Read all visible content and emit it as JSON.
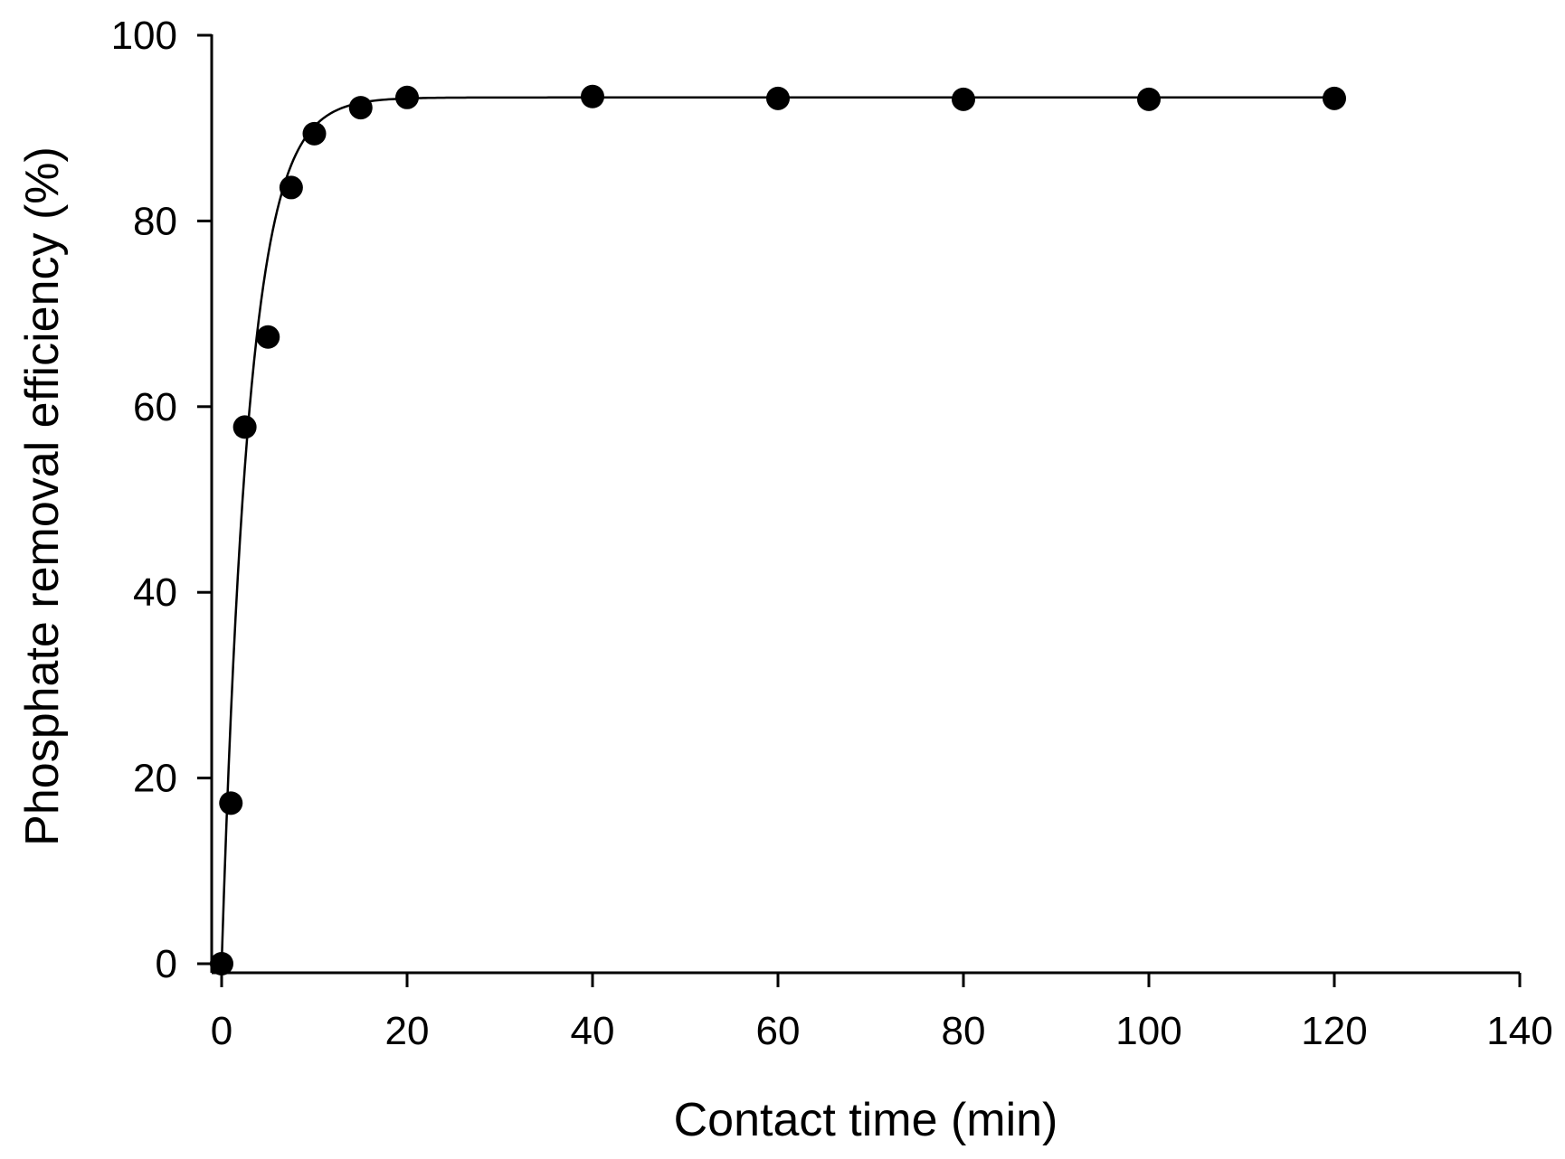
{
  "chart_data": {
    "type": "scatter",
    "title": "",
    "xlabel": "Contact time (min)",
    "ylabel": "Phosphate removal efficiency (%)",
    "xlim": [
      0,
      140
    ],
    "ylim": [
      0,
      100
    ],
    "xticks": [
      "0",
      "20",
      "40",
      "60",
      "80",
      "100",
      "120",
      "140"
    ],
    "yticks": [
      "0",
      "20",
      "40",
      "60",
      "80",
      "100"
    ],
    "grid": false,
    "legend": "none",
    "series": [
      {
        "marker": "filled-circle",
        "x": [
          0,
          1,
          2.5,
          5,
          7.5,
          10,
          15,
          20,
          40,
          60,
          80,
          100,
          120
        ],
        "y": [
          0,
          17.3,
          57.8,
          67.5,
          83.6,
          89.4,
          92.2,
          93.3,
          93.4,
          93.2,
          93.1,
          93.1,
          93.2
        ]
      }
    ],
    "fit_curve": {
      "style": "solid-line",
      "color": "#000000",
      "model": "exponential-rise",
      "y_max": 93.3,
      "rate_per_min": 0.34,
      "x_end": 120
    },
    "colors": {
      "marker": "#000000",
      "axis": "#000000",
      "background": "#ffffff"
    }
  }
}
